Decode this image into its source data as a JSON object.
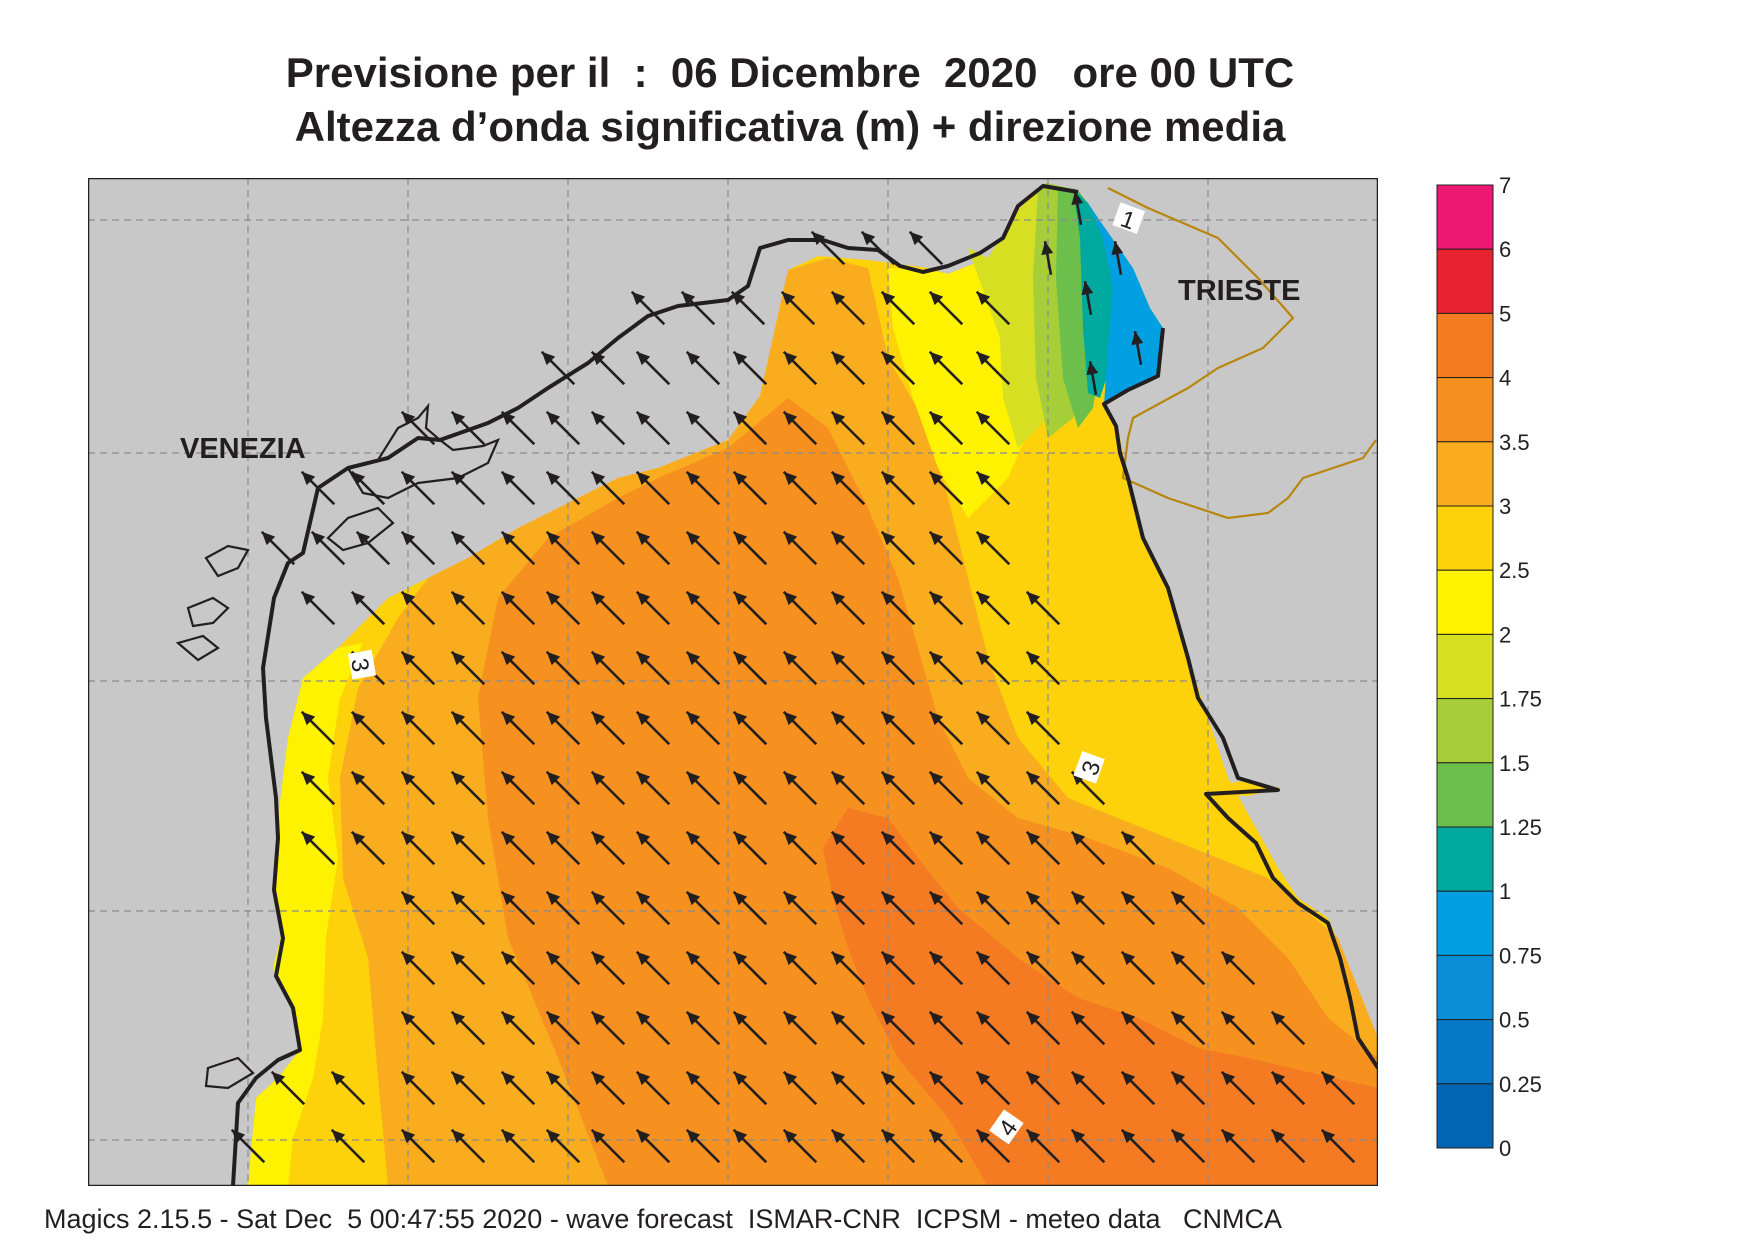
{
  "title": {
    "line1": "Previsione per il  :  06 Dicembre  2020   ore 00 UTC",
    "line2": "Altezza d’onda significativa (m) + direzione media"
  },
  "map": {
    "region": "northern Adriatic Sea",
    "cities": [
      {
        "key": "venezia",
        "label": "VENEZIA"
      },
      {
        "key": "trieste",
        "label": "TRIESTE"
      }
    ],
    "contour_labels": [
      {
        "key": "c1",
        "label": "1"
      },
      {
        "key": "c3a",
        "label": "3"
      },
      {
        "key": "c3b",
        "label": "3"
      },
      {
        "key": "c4",
        "label": "4"
      }
    ],
    "arrow_direction": "north-west",
    "colors": {
      "land": "#c8c8c8",
      "coastline": "#231f20",
      "border": "#b8860b",
      "grid": "#8a8a8a"
    }
  },
  "colorbar": {
    "levels": [
      {
        "label": "7",
        "color": "#ee1874"
      },
      {
        "label": "6",
        "color": "#e8212e"
      },
      {
        "label": "5",
        "color": "#f47b22"
      },
      {
        "label": "4",
        "color": "#f6901f"
      },
      {
        "label": "3.5",
        "color": "#f9ad1e"
      },
      {
        "label": "3",
        "color": "#fdd20a"
      },
      {
        "label": "2.5",
        "color": "#fff200"
      },
      {
        "label": "2",
        "color": "#d7df23"
      },
      {
        "label": "1.75",
        "color": "#a6ce39"
      },
      {
        "label": "1.5",
        "color": "#6cbf4a"
      },
      {
        "label": "1.25",
        "color": "#00a99d"
      },
      {
        "label": "1",
        "color": "#00a0e3"
      },
      {
        "label": "0.75",
        "color": "#0a8fd6"
      },
      {
        "label": "0.5",
        "color": "#0678c6"
      },
      {
        "label": "0.25",
        "color": "#0065b3"
      },
      {
        "label": "0",
        "color": null
      }
    ]
  },
  "footer": "Magics 2.15.5 - Sat Dec  5 00:47:55 2020 - wave forecast  ISMAR-CNR  ICPSM - meteo data   CNMCA"
}
